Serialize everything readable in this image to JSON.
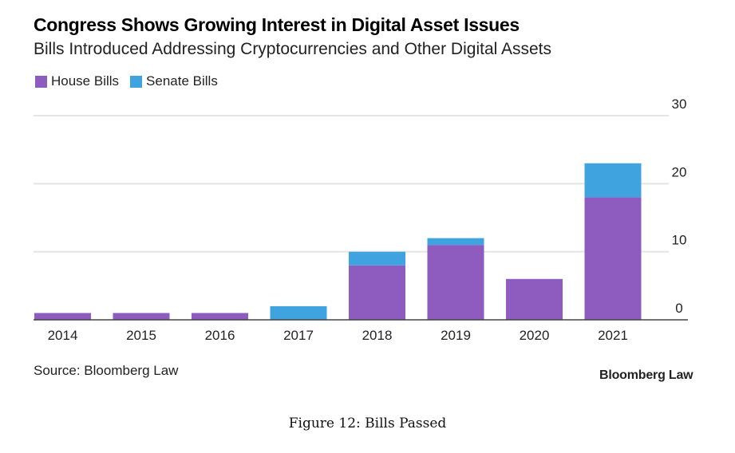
{
  "colors": {
    "house": "#8e5cbf",
    "senate": "#3fa3e0",
    "grid": "#e4e4e4",
    "baseline": "#444444"
  },
  "source": "Source: Bloomberg Law",
  "brand": "Bloomberg Law",
  "caption": "Figure 12: Bills Passed",
  "chart_data": {
    "type": "bar",
    "stacked": true,
    "title": "Congress Shows Growing Interest in Digital Asset Issues",
    "subtitle": "Bills Introduced Addressing Cryptocurrencies and Other Digital Assets",
    "categories": [
      "2014",
      "2015",
      "2016",
      "2017",
      "2018",
      "2019",
      "2020",
      "2021"
    ],
    "series": [
      {
        "name": "House Bills",
        "values": [
          1,
          1,
          1,
          0,
          8,
          11,
          6,
          18
        ]
      },
      {
        "name": "Senate Bills",
        "values": [
          0,
          0,
          0,
          2,
          2,
          1,
          0,
          5
        ]
      }
    ],
    "ylim": [
      0,
      30
    ],
    "yticks": [
      "0",
      "10",
      "20",
      "30"
    ],
    "y_axis_side": "right",
    "grid": true,
    "legend": "top-left"
  }
}
